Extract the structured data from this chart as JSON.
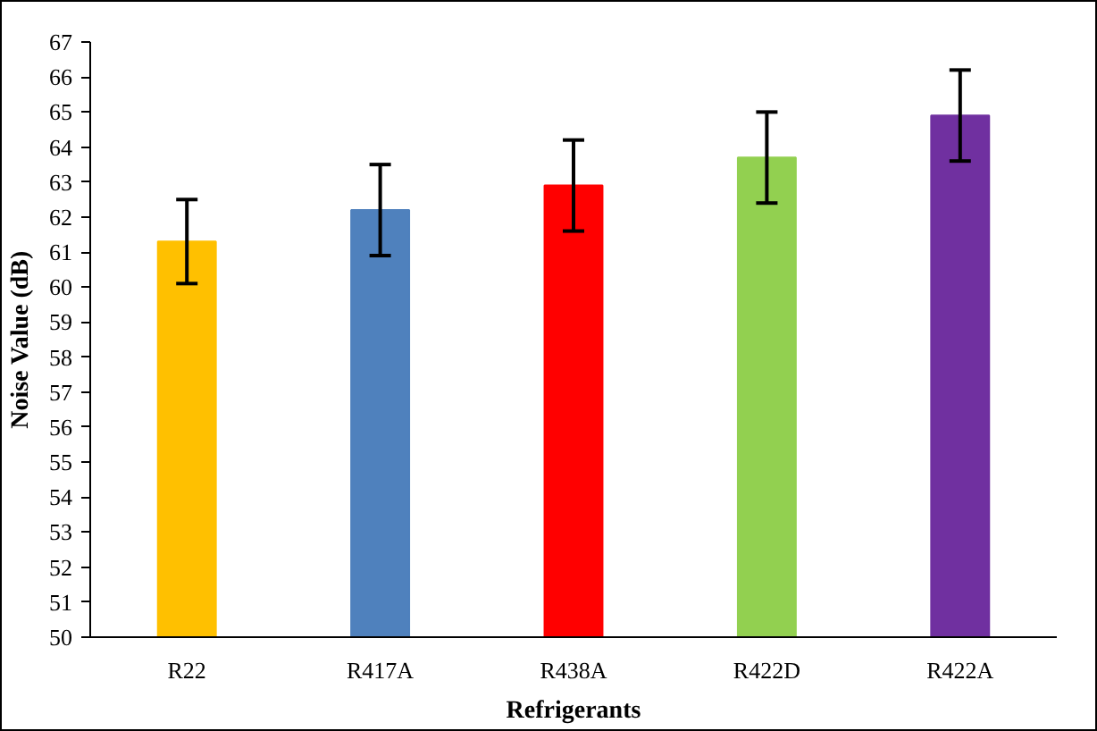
{
  "chart_data": {
    "type": "bar",
    "xlabel": "Refrigerants",
    "ylabel": "Noise Value (dB)",
    "categories": [
      "R22",
      "R417A",
      "R438A",
      "R422D",
      "R422A"
    ],
    "values": [
      61.3,
      62.2,
      62.9,
      63.7,
      64.9
    ],
    "colors": [
      "#ffc000",
      "#4f81bd",
      "#ff0000",
      "#92d050",
      "#7030a0"
    ],
    "errors": [
      1.2,
      1.3,
      1.3,
      1.3,
      1.3
    ],
    "ylim": [
      50,
      67
    ],
    "yticks": [
      50,
      51,
      52,
      53,
      54,
      55,
      56,
      57,
      58,
      59,
      60,
      61,
      62,
      63,
      64,
      65,
      66,
      67
    ],
    "grid": false
  }
}
